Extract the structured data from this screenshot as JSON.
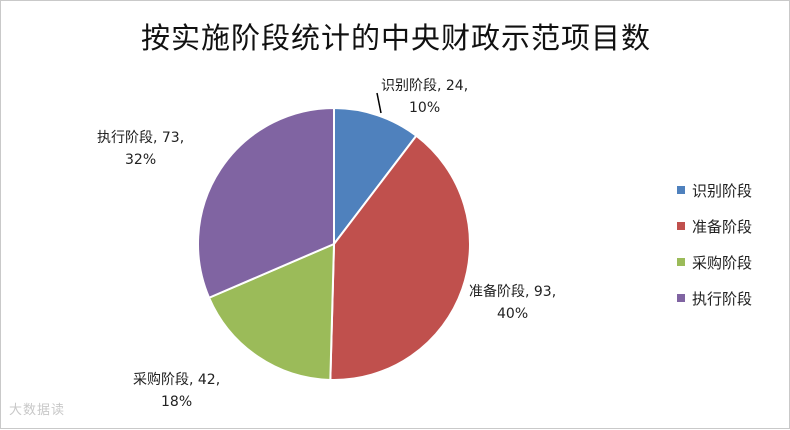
{
  "chart_data": {
    "type": "pie",
    "title": "按实施阶段统计的中央财政示范项目数",
    "slices": [
      {
        "name": "识别阶段",
        "value": 24,
        "percent": "10%",
        "color": "#4f81bd",
        "label_line1": "识别阶段, 24,",
        "label_line2": "10%"
      },
      {
        "name": "准备阶段",
        "value": 93,
        "percent": "40%",
        "color": "#c0504d",
        "label_line1": "准备阶段, 93,",
        "label_line2": "40%"
      },
      {
        "name": "采购阶段",
        "value": 42,
        "percent": "18%",
        "color": "#9bbb59",
        "label_line1": "采购阶段, 42,",
        "label_line2": "18%"
      },
      {
        "name": "执行阶段",
        "value": 73,
        "percent": "32%",
        "color": "#8064a2",
        "label_line1": "执行阶段, 73,",
        "label_line2": "32%"
      }
    ],
    "legend_position": "right"
  },
  "watermark": "大数据读"
}
